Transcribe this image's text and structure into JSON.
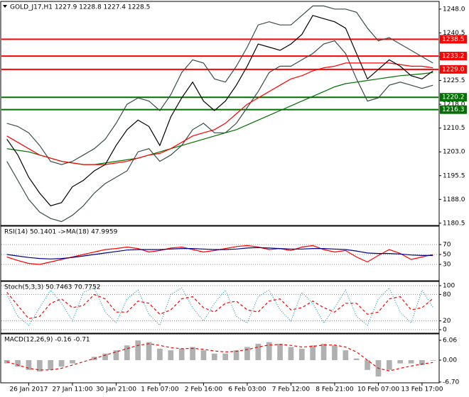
{
  "chart_data": [
    {
      "type": "line",
      "title": "GOLD_J17,H1  1227.9 1228.8 1227.4 1228.5",
      "xlim": [
        -0.5,
        39.5
      ],
      "x": [
        0,
        1,
        2,
        3,
        4,
        5,
        6,
        7,
        8,
        9,
        10,
        11,
        12,
        13,
        14,
        15,
        16,
        17,
        18,
        19,
        20,
        21,
        22,
        23,
        24,
        25,
        26,
        27,
        28,
        29,
        30,
        31,
        32,
        33,
        34,
        35,
        36,
        37,
        38,
        39
      ],
      "ylim": [
        1179.8,
        1250.2
      ],
      "yticks": [
        {
          "value": 1248,
          "label": "1248.0"
        },
        1240.5,
        {
          "value": 1233,
          "label": "1233.0"
        },
        1225.5,
        {
          "value": 1218,
          "label": "1218.0"
        },
        1210.5,
        {
          "value": 1203,
          "label": "1203.0"
        },
        1195.5,
        {
          "value": 1188,
          "label": "1188.0"
        },
        1180.5
      ],
      "grid": false,
      "hlines": [
        1238.5,
        1233.2,
        {
          "value": 1229,
          "label": "1229.0"
        },
        1220.2,
        1216.3
      ],
      "hline_colors": [
        "#ff0000",
        "#ff0000",
        "#ff0000",
        "#007000",
        "#007000"
      ],
      "series": [
        {
          "color": "#3a4a4a",
          "values": [
            1212,
            1211,
            1209,
            1205,
            1200,
            1199,
            1200,
            1202,
            1204,
            1207,
            1212,
            1218,
            1220,
            1219,
            1216,
            1221,
            1228,
            1232,
            1231,
            1226,
            1225,
            1230,
            1236,
            1243,
            1244,
            1243,
            1243,
            1246,
            1249,
            1249,
            1248,
            1248,
            1247,
            1242,
            1238,
            1239,
            1237,
            1235,
            1233,
            1231
          ]
        },
        {
          "color": "#3a4a4a",
          "values": [
            1200,
            1194,
            1188,
            1184,
            1182,
            1181,
            1183,
            1186,
            1190,
            1193,
            1195,
            1197,
            1203,
            1204,
            1200,
            1202,
            1205,
            1210,
            1212,
            1209,
            1209,
            1212,
            1217,
            1222,
            1228,
            1230,
            1230,
            1232,
            1234,
            1237,
            1238,
            1234,
            1226,
            1219,
            1220,
            1224,
            1225,
            1224,
            1223,
            1224
          ]
        },
        {
          "color": "#007000",
          "values": [
            1204,
            1203.5,
            1203,
            1202,
            1201,
            1200,
            1199.5,
            1199,
            1199,
            1199.5,
            1200,
            1200.5,
            1201,
            1202,
            1203,
            1204,
            1205,
            1206,
            1207,
            1208,
            1209,
            1210,
            1211.5,
            1213,
            1214.5,
            1216,
            1217.5,
            1219,
            1220.5,
            1222,
            1223.5,
            1224.5,
            1225,
            1225.5,
            1226,
            1226.5,
            1227,
            1227.3,
            1227.6,
            1228
          ]
        },
        {
          "color": "#ff0000",
          "values": [
            1208,
            1206,
            1204,
            1202,
            1201,
            1200,
            1199.5,
            1199,
            1199,
            1199,
            1199.5,
            1200,
            1201,
            1202,
            1202.5,
            1204,
            1206,
            1208,
            1209,
            1210,
            1212,
            1215,
            1218,
            1220,
            1222,
            1224,
            1226,
            1227,
            1228.5,
            1229.5,
            1230,
            1231,
            1231,
            1231,
            1231,
            1231,
            1230.5,
            1230,
            1230,
            1229.5
          ]
        },
        {
          "color": "#000000",
          "values": [
            1207,
            1202,
            1195,
            1190,
            1186,
            1187,
            1192,
            1194,
            1197,
            1199,
            1205,
            1210,
            1213,
            1211,
            1205,
            1214,
            1220,
            1225,
            1219,
            1216,
            1219,
            1224,
            1230,
            1237,
            1236,
            1235,
            1237,
            1240,
            1246,
            1245,
            1244,
            1242,
            1234,
            1226,
            1229,
            1232,
            1230,
            1227,
            1226,
            1228.5
          ]
        }
      ]
    },
    {
      "type": "line",
      "title": "RSI(14) 50.1401 ->MA(18) 47.9959",
      "xlim": [
        -0.5,
        39.5
      ],
      "x": [
        0,
        1,
        2,
        3,
        4,
        5,
        6,
        7,
        8,
        9,
        10,
        11,
        12,
        13,
        14,
        15,
        16,
        17,
        18,
        19,
        20,
        21,
        22,
        23,
        24,
        25,
        26,
        27,
        28,
        29,
        30,
        31,
        32,
        33,
        34,
        35,
        36,
        37,
        38,
        39
      ],
      "ylim": [
        -2.9,
        105.7
      ],
      "yticks": [
        70,
        50,
        30
      ],
      "grid": true,
      "series": [
        {
          "color": "#ff0000",
          "values": [
            45,
            38,
            32,
            30,
            35,
            40,
            45,
            50,
            55,
            60,
            62,
            65,
            62,
            55,
            58,
            63,
            65,
            60,
            55,
            58,
            62,
            66,
            68,
            65,
            60,
            62,
            58,
            65,
            68,
            60,
            55,
            58,
            45,
            35,
            48,
            60,
            52,
            40,
            45,
            50.1401
          ]
        },
        {
          "color": "#00008b",
          "values": [
            50,
            47,
            44,
            42,
            41,
            42,
            44,
            47,
            50,
            53,
            56,
            59,
            60,
            60,
            60,
            61,
            62,
            62,
            61,
            60,
            60,
            61,
            63,
            64,
            63,
            62,
            61,
            61,
            62,
            62,
            61,
            60,
            57,
            53,
            52,
            52,
            51,
            49,
            48,
            47.9959
          ]
        }
      ]
    },
    {
      "type": "line",
      "title": "Stoch(5,3,3) 50.7463 70.7752",
      "xlim": [
        -0.5,
        39.5
      ],
      "x": [
        0,
        1,
        2,
        3,
        4,
        5,
        6,
        7,
        8,
        9,
        10,
        11,
        12,
        13,
        14,
        15,
        16,
        17,
        18,
        19,
        20,
        21,
        22,
        23,
        24,
        25,
        26,
        27,
        28,
        29,
        30,
        31,
        32,
        33,
        34,
        35,
        36,
        37,
        38,
        39
      ],
      "ylim": [
        -8,
        108
      ],
      "yticks": [
        100,
        80,
        20,
        0
      ],
      "grid": true,
      "series": [
        {
          "color": "#20a0b0",
          "style": "dotted",
          "values": [
            80,
            30,
            10,
            50,
            90,
            60,
            20,
            85,
            95,
            40,
            15,
            70,
            90,
            35,
            10,
            80,
            95,
            50,
            20,
            60,
            90,
            30,
            15,
            75,
            90,
            45,
            20,
            85,
            60,
            15,
            50,
            90,
            30,
            10,
            70,
            95,
            40,
            15,
            90,
            50.7463
          ]
        },
        {
          "color": "#ff0000",
          "style": "dashed",
          "values": [
            85,
            55,
            25,
            30,
            60,
            70,
            50,
            55,
            80,
            70,
            40,
            40,
            65,
            60,
            35,
            45,
            70,
            75,
            50,
            40,
            60,
            65,
            45,
            40,
            65,
            70,
            45,
            50,
            65,
            50,
            40,
            60,
            60,
            35,
            40,
            70,
            75,
            45,
            50,
            70.7752
          ]
        }
      ]
    },
    {
      "type": "bar",
      "title": "MACD(12,26,9) -0.16 -0.71",
      "xlim": [
        -0.5,
        39.5
      ],
      "x": [
        0,
        1,
        2,
        3,
        4,
        5,
        6,
        7,
        8,
        9,
        10,
        11,
        12,
        13,
        14,
        15,
        16,
        17,
        18,
        19,
        20,
        21,
        22,
        23,
        24,
        25,
        26,
        27,
        28,
        29,
        30,
        31,
        32,
        33,
        34,
        35,
        36,
        37,
        38,
        39
      ],
      "xticks": [
        {
          "value": 2,
          "label": "26 Jan 2017"
        },
        {
          "value": 6,
          "label": "27 Jan 11:00"
        },
        {
          "value": 10,
          "label": "30 Jan 21:00"
        },
        {
          "value": 14,
          "label": "1 Feb 07:00"
        },
        {
          "value": 18,
          "label": "2 Feb 16:00"
        },
        {
          "value": 22,
          "label": "6 Feb 03:00"
        },
        {
          "value": 26,
          "label": "7 Feb 12:00"
        },
        {
          "value": 30,
          "label": "8 Feb 21:00"
        },
        {
          "value": 34,
          "label": "10 Feb 07:00"
        },
        {
          "value": 38,
          "label": "13 Feb 17:00"
        }
      ],
      "ylim": [
        -6.93,
        7.79
      ],
      "yticks": [
        6.06,
        {
          "value": 0,
          "label": "0.00"
        },
        {
          "value": -6.7,
          "label": "-6.70"
        }
      ],
      "grid": false,
      "series": [
        {
          "type": "bar",
          "color": "#b0b0b0",
          "values": [
            -1,
            -2,
            -3,
            -3.5,
            -3,
            -2,
            -1,
            0,
            1,
            2,
            3,
            4.5,
            6,
            5.5,
            3.5,
            3,
            3.5,
            4,
            3,
            2,
            2,
            3,
            4,
            5,
            5.5,
            5,
            4,
            3.5,
            4.5,
            5,
            4.5,
            3,
            0.5,
            -3,
            -5,
            -3,
            -1,
            -1,
            -1.5,
            -0.16
          ]
        },
        {
          "type": "line",
          "color": "#ff0000",
          "style": "dashed",
          "values": [
            -0.5,
            -1.5,
            -2.5,
            -3,
            -3,
            -2.5,
            -1.5,
            -0.5,
            0.5,
            1.5,
            2.5,
            3.5,
            4.5,
            5,
            4.5,
            3.8,
            3.5,
            3.6,
            3.3,
            2.8,
            2.5,
            2.7,
            3.2,
            4,
            4.6,
            4.8,
            4.5,
            4,
            4.2,
            4.6,
            4.6,
            4,
            2.5,
            0,
            -2.5,
            -3.3,
            -2.5,
            -1.8,
            -1.2,
            -0.71
          ]
        }
      ]
    }
  ]
}
